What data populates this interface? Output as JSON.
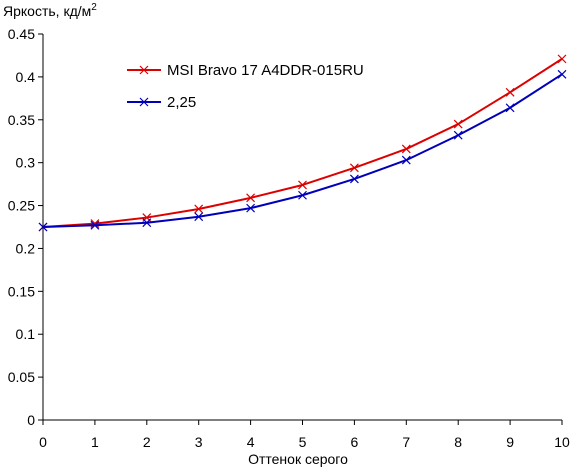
{
  "chart_data": {
    "type": "line",
    "ylabel": "Яркость, кд/м",
    "ylabel_sup": "2",
    "xlabel": "Оттенок серого",
    "x": [
      0,
      1,
      2,
      3,
      4,
      5,
      6,
      7,
      8,
      9,
      10
    ],
    "xlim": [
      0,
      10
    ],
    "ylim": [
      0,
      0.45
    ],
    "x_ticks": [
      "0",
      "1",
      "2",
      "3",
      "4",
      "5",
      "6",
      "7",
      "8",
      "9",
      "10"
    ],
    "y_ticks": [
      "0",
      "0.05",
      "0.1",
      "0.15",
      "0.2",
      "0.25",
      "0.3",
      "0.35",
      "0.4",
      "0.45"
    ],
    "y_tick_values": [
      0,
      0.05,
      0.1,
      0.15,
      0.2,
      0.25,
      0.3,
      0.35,
      0.4,
      0.45
    ],
    "grid": false,
    "legend_position": "top-left",
    "series": [
      {
        "name": "MSI Bravo 17 A4DDR-015RU",
        "color": "#dd0000",
        "marker": "x",
        "values": [
          0.225,
          0.229,
          0.236,
          0.246,
          0.259,
          0.274,
          0.294,
          0.316,
          0.345,
          0.382,
          0.421
        ]
      },
      {
        "name": "2,25",
        "color": "#0000bb",
        "marker": "x",
        "values": [
          0.225,
          0.227,
          0.23,
          0.237,
          0.247,
          0.262,
          0.281,
          0.303,
          0.332,
          0.364,
          0.403
        ]
      }
    ]
  }
}
